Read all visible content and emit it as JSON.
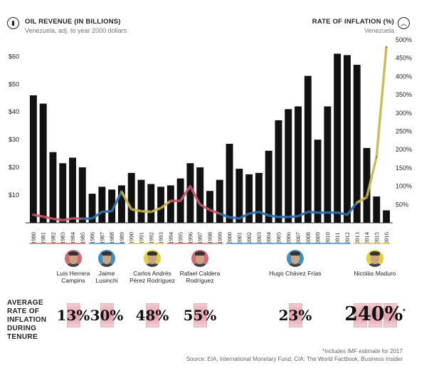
{
  "header": {
    "left_title": "OIL REVENUE (IN BILLIONS)",
    "left_subtitle": "Venezuela, adj. to year 2000 dollars",
    "right_title": "RATE OF INFLATION (%)",
    "right_subtitle": "Venezuela",
    "left_icon": "bar-chart-icon",
    "right_icon": "chevron-up-icon"
  },
  "colors": {
    "bar": "#111111",
    "inflation_by_era": [
      "#c9546a",
      "#2f6fae",
      "#c7b84a",
      "#c9546a",
      "#2f6fae",
      "#c7b84a"
    ]
  },
  "chart_data": {
    "type": "bar",
    "categories": [
      "1980",
      "1981",
      "1982",
      "1983",
      "1984",
      "1985",
      "1986",
      "1987",
      "1988",
      "1989",
      "1990",
      "1991",
      "1992",
      "1993",
      "1994",
      "1995",
      "1996",
      "1997",
      "1998",
      "1999",
      "2000",
      "2001",
      "2002",
      "2003",
      "2004",
      "2005",
      "2006",
      "2007",
      "2008",
      "2009",
      "2010",
      "2011",
      "2012",
      "2013",
      "2014",
      "2015",
      "2016"
    ],
    "series": [
      {
        "values": [
          46,
          43,
          25.5,
          21.5,
          23.5,
          20,
          10.5,
          13,
          12,
          13.5,
          18,
          15.5,
          14,
          13,
          13.5,
          16,
          21.5,
          20,
          11.5,
          15.5,
          28.5,
          19.5,
          17.5,
          18,
          26,
          37,
          41,
          42,
          53,
          30,
          42,
          61,
          60.5,
          57,
          27,
          9.5,
          4.5
        ],
        "axis": "left"
      },
      {
        "values": [
          22,
          17,
          11,
          7,
          12,
          11,
          12,
          30,
          32,
          85,
          37,
          32,
          30,
          40,
          60,
          60,
          100,
          50,
          35,
          25,
          15,
          12,
          25,
          30,
          20,
          16,
          16,
          18,
          30,
          28,
          28,
          28,
          22,
          55,
          70,
          180,
          480
        ],
        "axis": "right"
      }
    ],
    "y_left": {
      "ticks": [
        "$10",
        "$20",
        "$30",
        "$40",
        "$50",
        "$60"
      ],
      "values": [
        10,
        20,
        30,
        40,
        50,
        60
      ],
      "ylim": [
        0,
        66
      ]
    },
    "y_right": {
      "ticks": [
        "50%",
        "100%",
        "150%",
        "200%",
        "250%",
        "300%",
        "350%",
        "400%",
        "450%",
        "500%"
      ],
      "values": [
        50,
        100,
        150,
        200,
        250,
        300,
        350,
        400,
        450,
        500
      ],
      "ylim": [
        0,
        500
      ]
    },
    "grid": false
  },
  "presidents": [
    {
      "name": "Luis Herrera\nCampins",
      "color": "#d46a78",
      "avg": "13%"
    },
    {
      "name": "Jaime\nLusinchi",
      "color": "#3f8fc9",
      "avg": "30%"
    },
    {
      "name": "Carlos Andrés\nPérez Rodríguez",
      "color": "#e0cf3f",
      "avg": "48%"
    },
    {
      "name": "Rafael Caldera\nRodríguez",
      "color": "#d46a78",
      "avg": "55%"
    },
    {
      "name": "Hugo Chávez Frías",
      "color": "#3f8fc9",
      "avg": "23%"
    },
    {
      "name": "Nicolás Maduro",
      "color": "#e0cf3f",
      "avg": "240%",
      "avg_mark": "*"
    }
  ],
  "avg_label": "AVERAGE\nRATE OF\nINFLATION\nDURING\nTENURE",
  "footnote": "*Includes IMF estimate for 2017",
  "source": "Source: EIA, International Monetary Fund, CIA: The World Factbook, Business Insider"
}
